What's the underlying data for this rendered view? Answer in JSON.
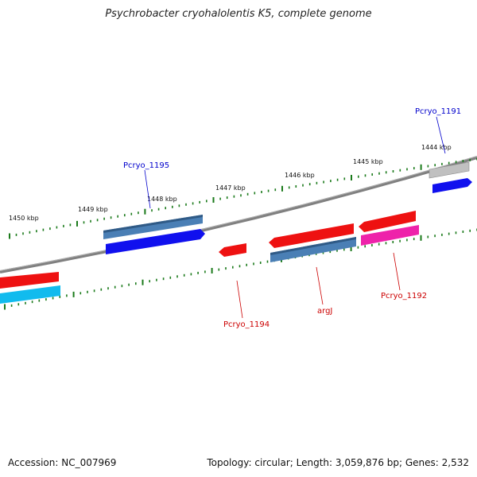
{
  "title": "Psychrobacter cryohalolentis K5, complete genome",
  "footer": {
    "accession": "Accession: NC_007969",
    "summary": "Topology: circular; Length: 3,059,876 bp; Genes: 2,532"
  },
  "scale_labels": [
    "1444 kbp",
    "1445 kbp",
    "1446 kbp",
    "1447 kbp",
    "1448 kbp",
    "1449 kbp",
    "1450 kbp"
  ],
  "gene_labels": [
    "Pcryo_1191",
    "Pcryo_1195",
    "Pcryo_1194",
    "argJ",
    "Pcryo_1192"
  ],
  "colors": {
    "backbone": "#808080",
    "tick": "#1a7a1a",
    "red": "#ee1111",
    "steelblue": "#4a7fb5",
    "blue": "#1010ee",
    "cyan": "#11bbee",
    "magenta": "#ee22aa",
    "gray": "#bbbbbb",
    "label_blue": "#0000cc",
    "label_red": "#cc0000"
  }
}
